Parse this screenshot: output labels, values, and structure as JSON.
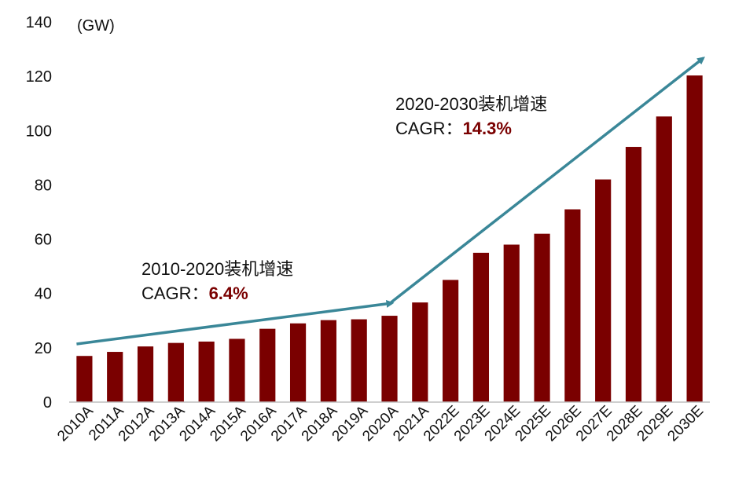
{
  "chart_data": {
    "type": "bar",
    "unit_label": "(GW)",
    "categories": [
      "2010A",
      "2011A",
      "2012A",
      "2013A",
      "2014A",
      "2015A",
      "2016A",
      "2017A",
      "2018A",
      "2019A",
      "2020A",
      "2021A",
      "2022E",
      "2023E",
      "2024E",
      "2025E",
      "2026E",
      "2027E",
      "2028E",
      "2029E",
      "2030E"
    ],
    "values": [
      17,
      18.5,
      20.5,
      21.8,
      22.3,
      23.3,
      27,
      29,
      30.2,
      30.5,
      31.8,
      36.7,
      45,
      55,
      58,
      62,
      71,
      82,
      94,
      105.2,
      120.3
    ],
    "ylim": [
      0,
      140
    ],
    "yticks": [
      0,
      20,
      40,
      60,
      80,
      100,
      120,
      140
    ],
    "bar_color": "#7a0000",
    "arrow_color": "#3a8798",
    "grid": false,
    "annotations": [
      {
        "title": "2010-2020装机增速",
        "label": "CAGR：",
        "value": "6.4%"
      },
      {
        "title": "2020-2030装机增速",
        "label": "CAGR：",
        "value": "14.3%"
      }
    ]
  }
}
